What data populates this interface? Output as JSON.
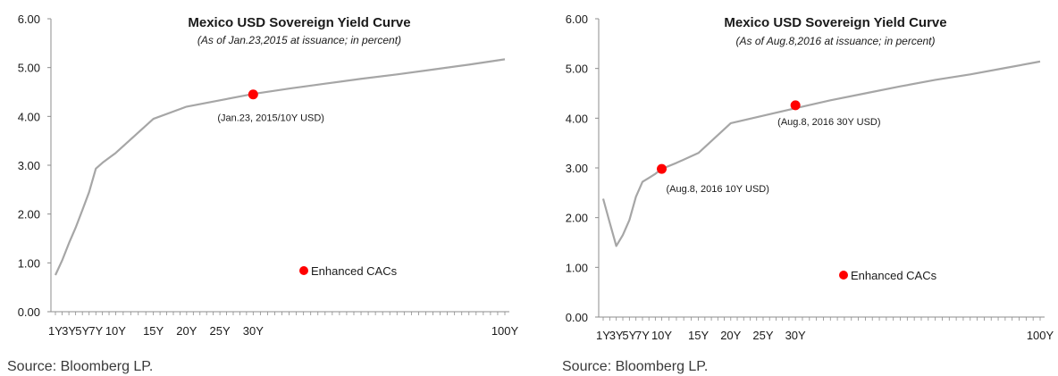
{
  "chart_data": [
    {
      "type": "line",
      "title": "Mexico USD Sovereign Yield Curve",
      "subtitle": "(As of Jan.23,2015 at issuance; in percent)",
      "ylim": [
        0,
        6
      ],
      "yticks": [
        "0.00",
        "1.00",
        "2.00",
        "3.00",
        "4.00",
        "5.00",
        "6.00"
      ],
      "xlim": [
        1,
        100
      ],
      "xticks": [
        {
          "x": 1,
          "label": "1Y"
        },
        {
          "x": 3,
          "label": "3Y"
        },
        {
          "x": 5,
          "label": "5Y"
        },
        {
          "x": 7,
          "label": "7Y"
        },
        {
          "x": 10,
          "label": "10Y"
        },
        {
          "x": 15,
          "label": "15Y"
        },
        {
          "x": 20,
          "label": "20Y"
        },
        {
          "x": 25,
          "label": "25Y"
        },
        {
          "x": 30,
          "label": "30Y"
        },
        {
          "x": 100,
          "label": "100Y"
        }
      ],
      "series": [
        {
          "x": [
            1,
            2,
            3,
            4,
            5,
            6,
            7,
            8,
            9,
            10,
            15,
            20,
            25,
            30,
            40,
            50,
            60,
            70,
            80,
            90,
            100
          ],
          "values": [
            0.75,
            1.05,
            1.4,
            1.72,
            2.08,
            2.45,
            2.93,
            3.05,
            3.15,
            3.25,
            3.95,
            4.2,
            4.33,
            4.46,
            4.57,
            4.67,
            4.77,
            4.86,
            4.96,
            5.06,
            5.17
          ],
          "color": "#a6a6a6"
        }
      ],
      "markers": [
        {
          "x": 30,
          "y": 4.45,
          "label": "(Jan.23, 2015/10Y USD)"
        }
      ],
      "legend": {
        "label": "Enhanced CACs",
        "color": "#ff0000"
      },
      "source": "Source: Bloomberg LP."
    },
    {
      "type": "line",
      "title": "Mexico USD Sovereign Yield Curve",
      "subtitle": "(As of Aug.8,2016 at issuance; in percent)",
      "ylim": [
        0,
        6
      ],
      "yticks": [
        "0.00",
        "1.00",
        "2.00",
        "3.00",
        "4.00",
        "5.00",
        "6.00"
      ],
      "xlim": [
        1,
        100
      ],
      "xticks": [
        {
          "x": 1,
          "label": "1Y"
        },
        {
          "x": 3,
          "label": "3Y"
        },
        {
          "x": 5,
          "label": "5Y"
        },
        {
          "x": 7,
          "label": "7Y"
        },
        {
          "x": 10,
          "label": "10Y"
        },
        {
          "x": 15,
          "label": "15Y"
        },
        {
          "x": 20,
          "label": "20Y"
        },
        {
          "x": 25,
          "label": "25Y"
        },
        {
          "x": 30,
          "label": "30Y"
        },
        {
          "x": 100,
          "label": "100Y"
        }
      ],
      "series": [
        {
          "x": [
            1,
            2,
            3,
            4,
            5,
            6,
            7,
            8,
            9,
            10,
            12,
            15,
            20,
            25,
            30,
            40,
            50,
            60,
            70,
            80,
            90,
            100
          ],
          "values": [
            2.38,
            1.9,
            1.43,
            1.65,
            1.95,
            2.42,
            2.72,
            2.8,
            2.88,
            2.98,
            3.1,
            3.3,
            3.9,
            4.05,
            4.2,
            4.36,
            4.5,
            4.64,
            4.77,
            4.88,
            5.01,
            5.14
          ],
          "color": "#a6a6a6"
        }
      ],
      "markers": [
        {
          "x": 10,
          "y": 2.98,
          "label": "(Aug.8, 2016 10Y USD)"
        },
        {
          "x": 30,
          "y": 4.26,
          "label": "(Aug.8, 2016 30Y USD)"
        }
      ],
      "legend": {
        "label": "Enhanced CACs",
        "color": "#ff0000"
      },
      "source": "Source: Bloomberg LP."
    }
  ]
}
